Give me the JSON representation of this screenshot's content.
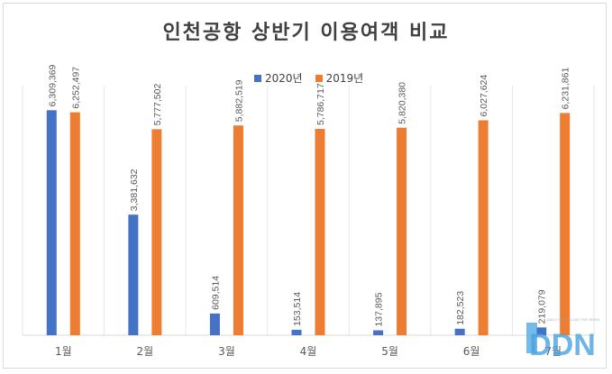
{
  "chart_data": {
    "type": "bar",
    "title": "인천공항 상반기 이용여객 비교",
    "categories": [
      "1월",
      "2월",
      "3월",
      "4월",
      "5월",
      "6월",
      "7월"
    ],
    "series": [
      {
        "name": "2020년",
        "color": "#4472c4",
        "values": [
          6309369,
          3381632,
          609514,
          153514,
          137895,
          182523,
          219079
        ],
        "labels": [
          "6,309,369",
          "3,381,632",
          "609,514",
          "153,514",
          "137,895",
          "182,523",
          "219,079"
        ]
      },
      {
        "name": "2019년",
        "color": "#ed7d31",
        "values": [
          6252497,
          5777502,
          5882519,
          5786717,
          5820380,
          6027624,
          6231861
        ],
        "labels": [
          "6,252,497",
          "5,777,502",
          "5,882,519",
          "5,786,717",
          "5,820,380",
          "6,027,624",
          "6,231,861"
        ]
      }
    ],
    "ylim": [
      0,
      7000000
    ],
    "legend_position": "top",
    "grid": false
  },
  "watermark": {
    "text": "DDN",
    "tagline": "DAILY DRIVE & DIG THE NEWS",
    "color": "#4aa3df"
  }
}
